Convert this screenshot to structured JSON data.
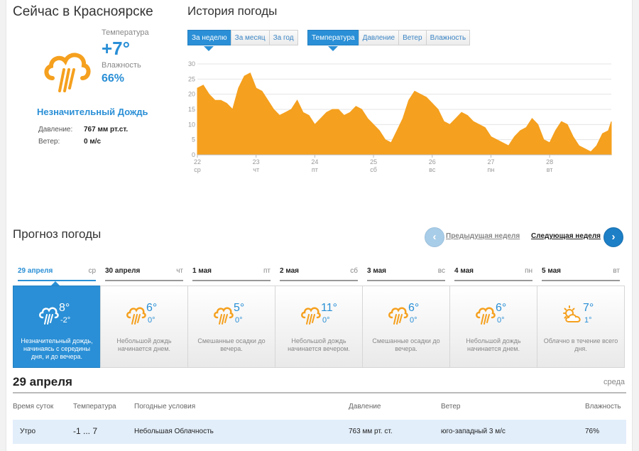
{
  "current": {
    "title": "Сейчас в Красноярске",
    "temp_label": "Температура",
    "temp_value": "+7°",
    "humidity_label": "Влажность",
    "humidity_value": "66%",
    "condition": "Незначительный Дождь",
    "pressure_label": "Давление:",
    "pressure_value": "767 мм рт.ст.",
    "wind_label": "Ветер:",
    "wind_value": "0 м/с"
  },
  "history": {
    "title": "История погоды",
    "period_buttons": [
      "За неделю",
      "За месяц",
      "За год"
    ],
    "metric_buttons": [
      "Температура",
      "Давление",
      "Ветер",
      "Влажность"
    ]
  },
  "chart_data": {
    "type": "area",
    "ylim": [
      0,
      30
    ],
    "y_ticks": [
      "0",
      "5",
      "10",
      "15",
      "20",
      "25",
      "30"
    ],
    "x_ticks": [
      {
        "day": "22",
        "dow": "ср"
      },
      {
        "day": "23",
        "dow": "чт"
      },
      {
        "day": "24",
        "dow": "пт"
      },
      {
        "day": "25",
        "dow": "сб"
      },
      {
        "day": "26",
        "dow": "вс"
      },
      {
        "day": "27",
        "dow": "пн"
      },
      {
        "day": "28",
        "dow": "вт"
      }
    ],
    "x": [
      22.0,
      22.1,
      22.2,
      22.3,
      22.4,
      22.5,
      22.6,
      22.7,
      22.8,
      22.9,
      23.0,
      23.1,
      23.2,
      23.3,
      23.4,
      23.5,
      23.6,
      23.7,
      23.8,
      23.9,
      24.0,
      24.1,
      24.2,
      24.3,
      24.4,
      24.5,
      24.6,
      24.7,
      24.8,
      24.9,
      25.0,
      25.1,
      25.2,
      25.3,
      25.4,
      25.5,
      25.6,
      25.7,
      25.8,
      25.9,
      26.0,
      26.1,
      26.2,
      26.3,
      26.4,
      26.5,
      26.6,
      26.7,
      26.8,
      26.9,
      27.0,
      27.1,
      27.2,
      27.3,
      27.4,
      27.5,
      27.6,
      27.7,
      27.8,
      27.9,
      28.0,
      28.1,
      28.2,
      28.3,
      28.4,
      28.5,
      28.6,
      28.7,
      28.8,
      28.9,
      29.0,
      29.05
    ],
    "values": [
      22,
      23,
      20,
      18,
      18,
      17,
      15,
      22,
      26,
      27,
      22,
      21,
      18,
      15,
      13,
      14,
      15,
      18,
      14,
      13,
      10,
      12,
      14,
      15,
      15,
      13,
      14,
      16,
      15,
      12,
      10,
      8,
      5,
      4,
      8,
      12,
      18,
      21,
      20,
      19,
      17,
      15,
      11,
      10,
      12,
      14,
      13,
      11,
      10,
      9,
      6,
      5,
      4,
      3,
      6,
      8,
      9,
      12,
      10,
      5,
      4,
      8,
      11,
      10,
      6,
      3,
      2,
      1,
      3,
      7,
      8,
      11
    ],
    "color": "#f5a01e"
  },
  "forecast": {
    "title": "Прогноз погоды",
    "prev_week": "Предыдущая неделя",
    "next_week": "Следующая неделя",
    "days": [
      {
        "date": "29 апреля",
        "dow": "ср",
        "t_high": "8°",
        "t_low": "-2°",
        "desc": "Незначительный дождь, начинаясь с середины дня, и до вечера.",
        "icon": "rain-cloud-icon"
      },
      {
        "date": "30 апреля",
        "dow": "чт",
        "t_high": "6°",
        "t_low": "0°",
        "desc": "Небольшой дождь начинается днем.",
        "icon": "rain-cloud-icon"
      },
      {
        "date": "1 мая",
        "dow": "пт",
        "t_high": "5°",
        "t_low": "0°",
        "desc": "Смешанные осадки до вечера.",
        "icon": "rain-cloud-icon"
      },
      {
        "date": "2 мая",
        "dow": "сб",
        "t_high": "11°",
        "t_low": "0°",
        "desc": "Небольшой дождь начинается вечером.",
        "icon": "rain-cloud-icon"
      },
      {
        "date": "3 мая",
        "dow": "вс",
        "t_high": "6°",
        "t_low": "0°",
        "desc": "Смешанные осадки до вечера.",
        "icon": "rain-cloud-icon"
      },
      {
        "date": "4 мая",
        "dow": "пн",
        "t_high": "6°",
        "t_low": "0°",
        "desc": "Небольшой дождь начинается днем.",
        "icon": "rain-cloud-icon"
      },
      {
        "date": "5 мая",
        "dow": "вт",
        "t_high": "7°",
        "t_low": "1°",
        "desc": "Облачно в течение всего дня.",
        "icon": "partly-cloudy-icon"
      }
    ]
  },
  "detail": {
    "date": "29 апреля",
    "dow": "среда",
    "headers": [
      "Время суток",
      "Температура",
      "Погодные условия",
      "Давление",
      "Ветер",
      "Влажность"
    ],
    "rows": [
      [
        "Утро",
        "-1 ... 7",
        "Небольшая Облачность",
        "763 мм рт. ст.",
        "юго-западный 3 м/с",
        "76%"
      ]
    ]
  }
}
